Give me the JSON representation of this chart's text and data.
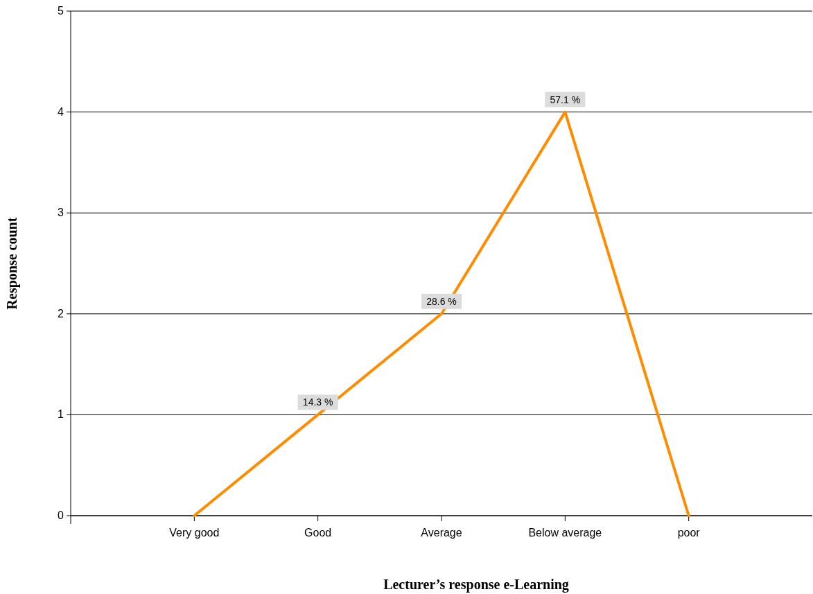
{
  "chart_data": {
    "type": "line",
    "xlabel": "Lecturer’s response e-Learning",
    "ylabel": "Response count",
    "categories": [
      "Very good",
      "Good",
      "Average",
      "Below average",
      "poor"
    ],
    "series": [
      {
        "color": "#ff8c00",
        "values": [
          0,
          1,
          2,
          4,
          0
        ]
      }
    ],
    "annotations": [
      {
        "text": "14.3 %",
        "x": "Good",
        "y": 1
      },
      {
        "text": "28.6 %",
        "x": "Average",
        "y": 2
      },
      {
        "text": "57.1 %",
        "x": "Below average",
        "y": 4
      }
    ],
    "ylim": [
      0,
      5
    ],
    "yticks": [
      0,
      1,
      2,
      3,
      4,
      5
    ],
    "grid": "y",
    "marker": "none",
    "line_style": "solid"
  }
}
